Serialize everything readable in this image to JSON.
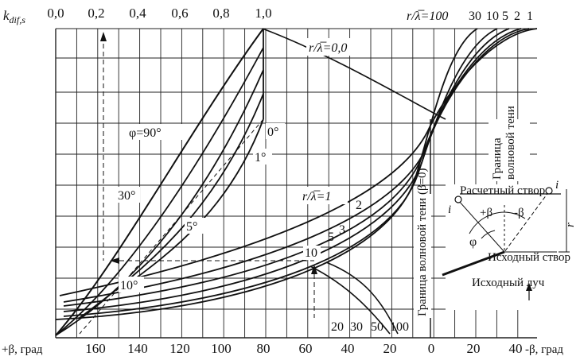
{
  "top_axis": {
    "title": "k",
    "title_sub": "dif,s",
    "ticks": [
      "0,0",
      "0,2",
      "0,4",
      "0,6",
      "0,8",
      "1,0"
    ]
  },
  "bottom_axis": {
    "left_label": "+β, град",
    "right_label": "-β, град",
    "ticks": [
      "160",
      "140",
      "120",
      "100",
      "80",
      "60",
      "40",
      "20",
      "0",
      "20",
      "40"
    ]
  },
  "left_family": {
    "param_label": "φ=90°",
    "angle_labels": [
      "30°",
      "5°",
      "10°",
      "1°",
      "0°"
    ]
  },
  "right_family": {
    "top_label": "r/λ̅=100",
    "top_values": [
      "30",
      "10",
      "5",
      "2",
      "1"
    ],
    "zero_label": "r/λ̅=0,0",
    "one_label": "r/λ̅=1",
    "mid_values": [
      "2",
      "3",
      "5",
      "10"
    ],
    "bottom_values": [
      "20",
      "30",
      "50",
      "100"
    ]
  },
  "vertical_labels": {
    "shadow_line": "Граница волновой тени (β=0)",
    "shadow_boundary": "Граница волновой тени"
  },
  "inset": {
    "calc_section": "Расчетный створ",
    "point_left": "i",
    "point_right": "i",
    "plus_beta": "+β",
    "minus_beta": "-β",
    "phi": "φ",
    "r": "r",
    "source_section": "Исходный створ",
    "source_ray": "Исходный луч"
  }
}
